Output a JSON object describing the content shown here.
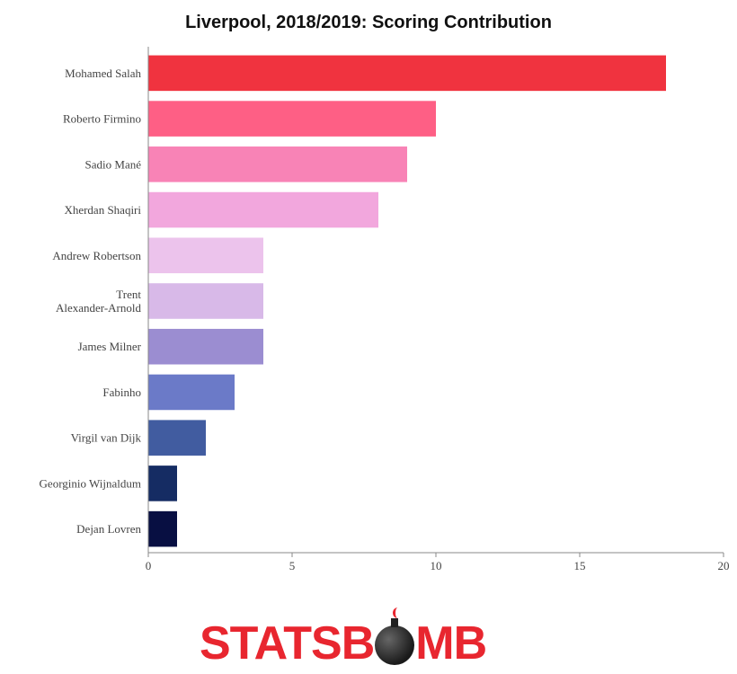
{
  "chart_data": {
    "type": "bar",
    "orientation": "horizontal",
    "title": "Liverpool, 2018/2019: Scoring Contribution",
    "categories": [
      "Mohamed Salah",
      "Roberto Firmino",
      "Sadio Mané",
      "Xherdan Shaqiri",
      "Andrew Robertson",
      "Trent Alexander-Arnold",
      "James Milner",
      "Fabinho",
      "Virgil van Dijk",
      "Georginio Wijnaldum",
      "Dejan Lovren"
    ],
    "values": [
      18,
      10,
      9,
      8,
      4,
      4,
      4,
      3,
      2,
      1,
      1
    ],
    "colors": [
      "#f0333f",
      "#fe5f85",
      "#f883b6",
      "#f2a7dd",
      "#ecc3ec",
      "#d8b9e8",
      "#9b8dd1",
      "#6b7ac8",
      "#415ca0",
      "#152c63",
      "#080f42"
    ],
    "xlim": [
      0,
      20
    ],
    "xticks": [
      0,
      5,
      10,
      15,
      20
    ],
    "grid": false,
    "xlabel": "",
    "ylabel": ""
  },
  "logo": {
    "left": "STATSB",
    "right": "MB"
  }
}
